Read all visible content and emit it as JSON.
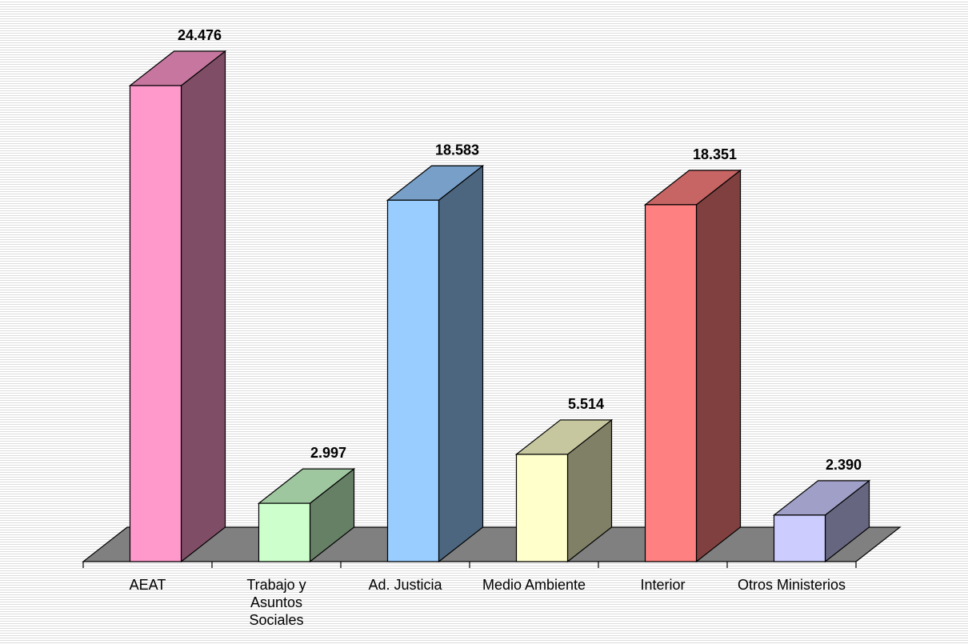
{
  "chart_data": {
    "type": "bar",
    "style": "3d-column",
    "categories": [
      "AEAT",
      "Trabajo y Asuntos Sociales",
      "Ad. Justicia",
      "Medio Ambiente",
      "Interior",
      "Otros Ministerios"
    ],
    "category_lines": [
      [
        "AEAT"
      ],
      [
        "Trabajo y",
        "Asuntos",
        "Sociales"
      ],
      [
        "Ad. Justicia"
      ],
      [
        "Medio Ambiente"
      ],
      [
        "Interior"
      ],
      [
        "Otros Ministerios"
      ]
    ],
    "values": [
      24476,
      2997,
      18583,
      5514,
      18351,
      2390
    ],
    "value_labels": [
      "24.476",
      "2.997",
      "18.583",
      "5.514",
      "18.351",
      "2.390"
    ],
    "bar_colors": [
      "#ff99cc",
      "#ccffcc",
      "#99ccff",
      "#ffffcc",
      "#ff8080",
      "#ccccff"
    ],
    "floor_color": "#808080",
    "grid": false,
    "legend": "none"
  }
}
